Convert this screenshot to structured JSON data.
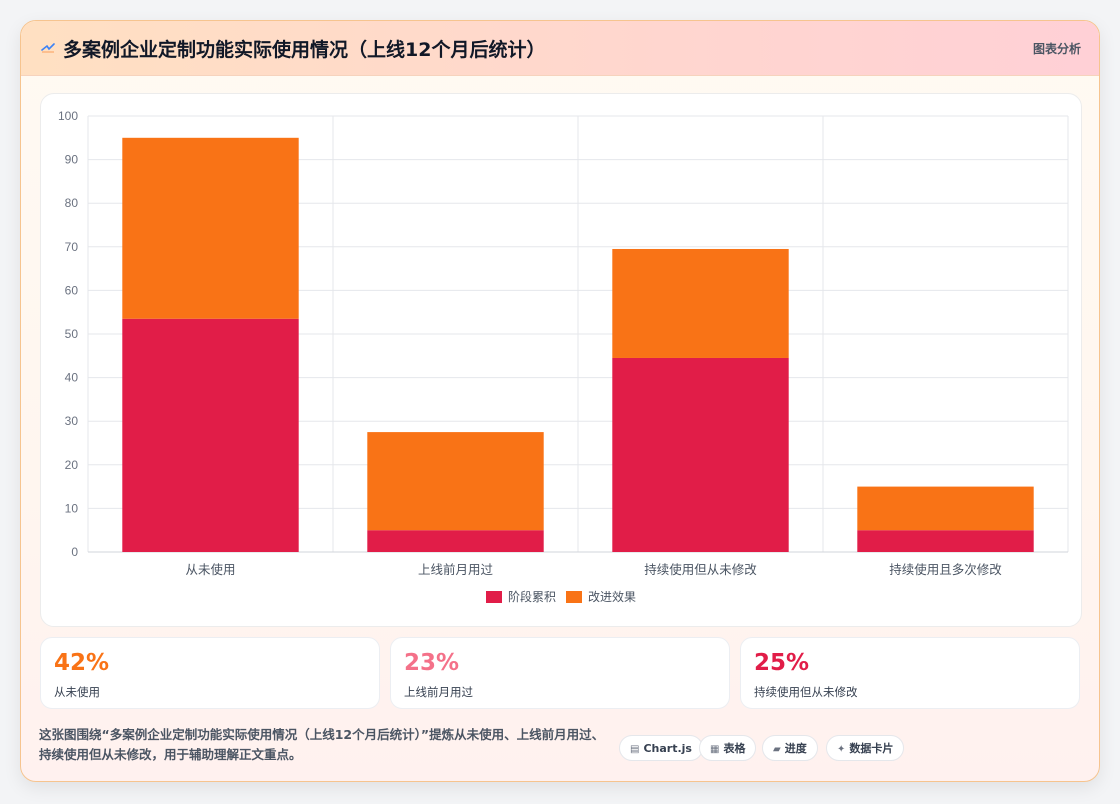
{
  "header": {
    "title": "多案例企业定制功能实际使用情况（上线12个月后统计）",
    "link_label": "图表分析",
    "icon": "chart-swoosh-icon"
  },
  "chart_data": {
    "type": "bar",
    "stacked": true,
    "categories": [
      "从未使用",
      "上线前月用过",
      "持续使用但从未修改",
      "持续使用且多次修改"
    ],
    "series": [
      {
        "name": "阶段累积",
        "color": "#e11d48",
        "values": [
          53.5,
          5,
          44.5,
          5
        ]
      },
      {
        "name": "改进效果",
        "color": "#f97316",
        "values": [
          41.5,
          22.5,
          25,
          10
        ]
      }
    ],
    "ylim": [
      0,
      100
    ],
    "yticks": [
      0,
      10,
      20,
      30,
      40,
      50,
      60,
      70,
      80,
      90,
      100
    ],
    "grid": true,
    "legend": "bottom"
  },
  "stats": [
    {
      "value": "42%",
      "label": "从未使用",
      "color": "#f97316"
    },
    {
      "value": "23%",
      "label": "上线前月用过",
      "color": "#f47189"
    },
    {
      "value": "25%",
      "label": "持续使用但从未修改",
      "color": "#e11d48"
    }
  ],
  "description": "这张图围绕“多案例企业定制功能实际使用情况（上线12个月后统计）”提炼从未使用、上线前月用过、持续使用但从未修改，用于辅助理解正文重点。",
  "tags": [
    {
      "icon": "▤",
      "label": "Chart.js"
    },
    {
      "icon": "▦",
      "label": "表格"
    },
    {
      "icon": "▰",
      "label": "进度"
    },
    {
      "icon": "✦",
      "label": "数据卡片"
    }
  ]
}
